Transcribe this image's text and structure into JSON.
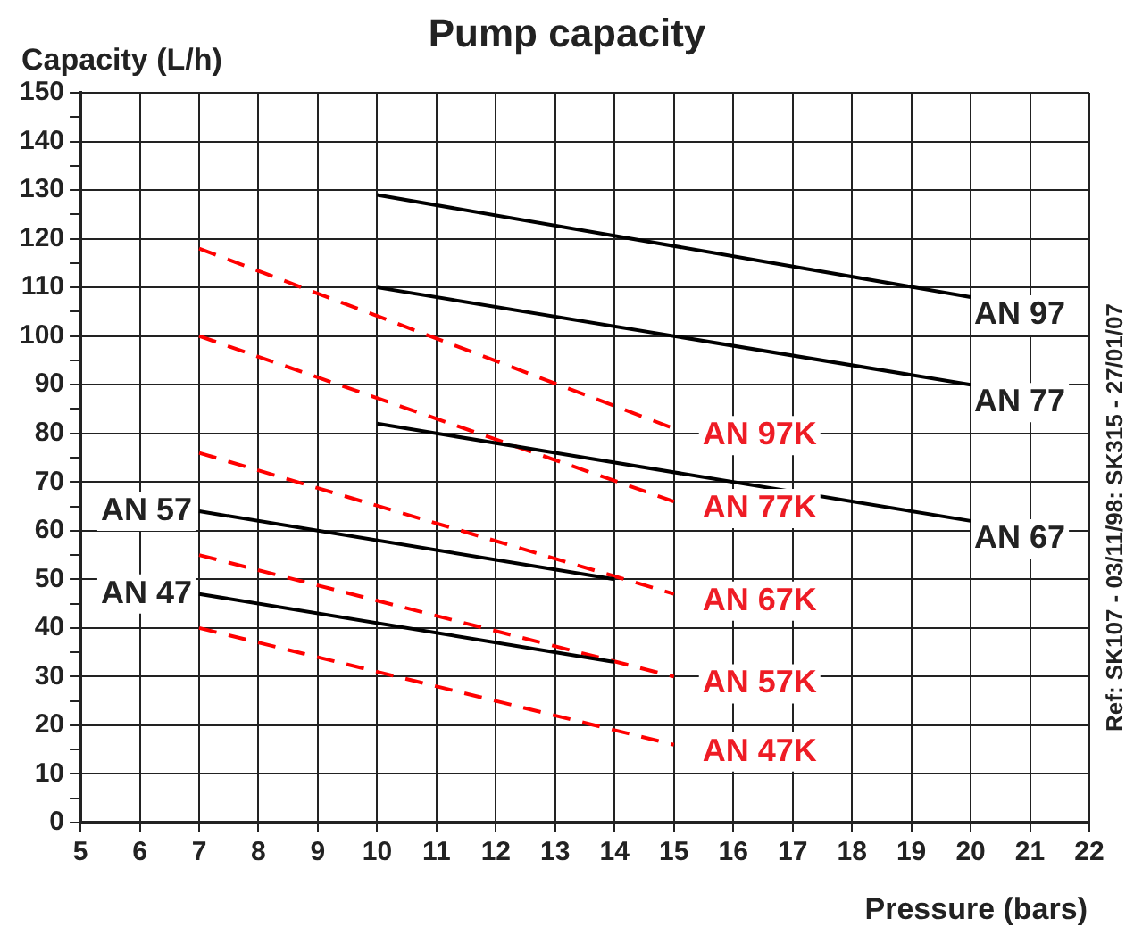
{
  "chart_data": {
    "type": "line",
    "title": "Pump capacity",
    "xlabel": "Pressure  (bars)",
    "ylabel": "Capacity  (L/h)",
    "annotations": [
      "Ref: SK107 - 03/11/98: SK315 - 27/01/07"
    ],
    "xlim": [
      5,
      22
    ],
    "xticks": [
      5,
      6,
      7,
      8,
      9,
      10,
      11,
      12,
      13,
      14,
      15,
      16,
      17,
      18,
      19,
      20,
      21,
      22
    ],
    "ylim": [
      0,
      150
    ],
    "yticks": [
      0,
      {
        "value": 5,
        "label": null
      },
      10,
      {
        "value": 15,
        "label": null
      },
      20,
      {
        "value": 25,
        "label": null
      },
      30,
      {
        "value": 35,
        "label": null
      },
      40,
      {
        "value": 45,
        "label": null
      },
      50,
      {
        "value": 55,
        "label": null
      },
      60,
      {
        "value": 65,
        "label": null
      },
      70,
      {
        "value": 75,
        "label": null
      },
      80,
      {
        "value": 85,
        "label": null
      },
      90,
      {
        "value": 95,
        "label": null
      },
      100,
      {
        "value": 105,
        "label": null
      },
      110,
      {
        "value": 115,
        "label": null
      },
      120,
      {
        "value": 125,
        "label": null
      },
      130,
      {
        "value": 135,
        "label": null
      },
      140,
      {
        "value": 145,
        "label": null
      },
      150
    ],
    "grid": true,
    "legend": false,
    "marker": "none",
    "series": [
      {
        "name": "AN 97",
        "color": "#000000",
        "line_style": "solid",
        "x": [
          10,
          20
        ],
        "values": [
          129,
          108
        ]
      },
      {
        "name": "AN 77",
        "color": "#000000",
        "line_style": "solid",
        "x": [
          10,
          20
        ],
        "values": [
          110,
          90
        ]
      },
      {
        "name": "AN 67",
        "color": "#000000",
        "line_style": "solid",
        "x": [
          10,
          20
        ],
        "values": [
          82,
          62
        ]
      },
      {
        "name": "AN 57",
        "color": "#000000",
        "line_style": "solid",
        "x": [
          7,
          14
        ],
        "values": [
          64,
          50
        ]
      },
      {
        "name": "AN 47",
        "color": "#000000",
        "line_style": "solid",
        "x": [
          7,
          14
        ],
        "values": [
          47,
          33
        ]
      },
      {
        "name": "AN 97K",
        "color": "#ff0000",
        "line_style": "dashed",
        "x": [
          7,
          15
        ],
        "values": [
          118,
          81
        ]
      },
      {
        "name": "AN 77K",
        "color": "#ff0000",
        "line_style": "dashed",
        "x": [
          7,
          15
        ],
        "values": [
          100,
          66
        ]
      },
      {
        "name": "AN 67K",
        "color": "#ff0000",
        "line_style": "dashed",
        "x": [
          7,
          15
        ],
        "values": [
          76,
          47
        ]
      },
      {
        "name": "AN 57K",
        "color": "#ff0000",
        "line_style": "dashed",
        "x": [
          7,
          15
        ],
        "values": [
          55,
          30
        ]
      },
      {
        "name": "AN 47K",
        "color": "#ff0000",
        "line_style": "dashed",
        "x": [
          7,
          15
        ],
        "values": [
          40,
          16
        ]
      }
    ]
  }
}
